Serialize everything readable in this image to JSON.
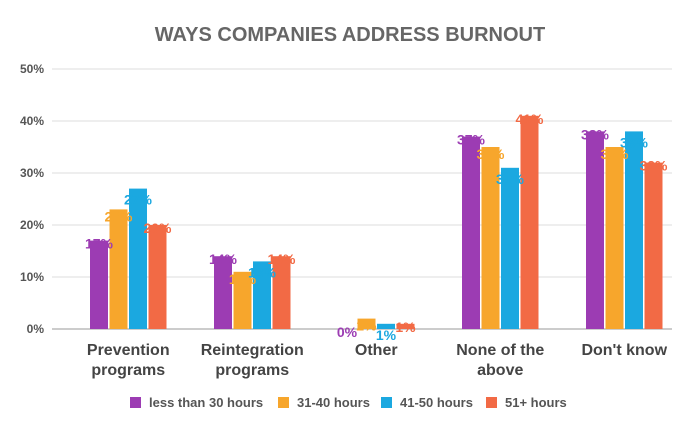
{
  "chart_data": {
    "type": "bar",
    "title": "WAYS COMPANIES ADDRESS BURNOUT",
    "categories": [
      [
        "Prevention",
        "programs"
      ],
      [
        "Reintegration",
        "programs"
      ],
      [
        "Other"
      ],
      [
        "None of the",
        "above"
      ],
      [
        "Don't know"
      ]
    ],
    "series": [
      {
        "name": "less than 30 hours",
        "color": "#9C3CB3",
        "values": [
          17,
          14,
          0,
          37,
          38
        ],
        "labels": [
          "17%",
          "14%",
          "0%",
          "37%",
          "38%"
        ]
      },
      {
        "name": "31-40 hours",
        "color": "#F7A62C",
        "values": [
          23,
          11,
          2,
          35,
          35
        ],
        "labels": [
          "23%",
          "11%",
          "2%",
          "35%",
          "35%"
        ]
      },
      {
        "name": "41-50 hours",
        "color": "#1BA8E0",
        "values": [
          27,
          13,
          1,
          31,
          38
        ],
        "labels": [
          "27%",
          "13%",
          "1%",
          "31%",
          "38%"
        ]
      },
      {
        "name": "51+ hours",
        "color": "#F26A45",
        "values": [
          20,
          14,
          1,
          41,
          32
        ],
        "labels": [
          "20%",
          "14%",
          "1%",
          "41%",
          "32%"
        ]
      }
    ],
    "yticks": [
      0,
      10,
      20,
      30,
      40,
      50
    ],
    "ytick_labels": [
      "0%",
      "10%",
      "20%",
      "30%",
      "40%",
      "50%"
    ],
    "ylim": [
      0,
      50
    ],
    "xlabel": "",
    "ylabel": "",
    "grid": true,
    "legend_position": "bottom"
  }
}
